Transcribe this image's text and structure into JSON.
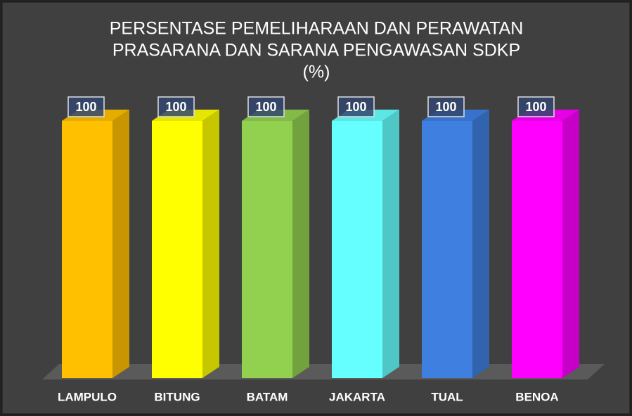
{
  "chart_data": {
    "type": "bar3d",
    "title": [
      "PERSENTASE PEMELIHARAAN DAN PERAWATAN",
      "PRASARANA DAN SARANA PENGAWASAN SDKP",
      "(%)"
    ],
    "categories": [
      "LAMPULO",
      "BITUNG",
      "BATAM",
      "JAKARTA",
      "TUAL",
      "BENOA"
    ],
    "values": [
      100,
      100,
      100,
      100,
      100,
      100
    ],
    "colors": [
      "#ffc000",
      "#ffff00",
      "#92d050",
      "#66ffff",
      "#3f7fe0",
      "#ff00ff"
    ],
    "ylim": [
      0,
      100
    ]
  }
}
